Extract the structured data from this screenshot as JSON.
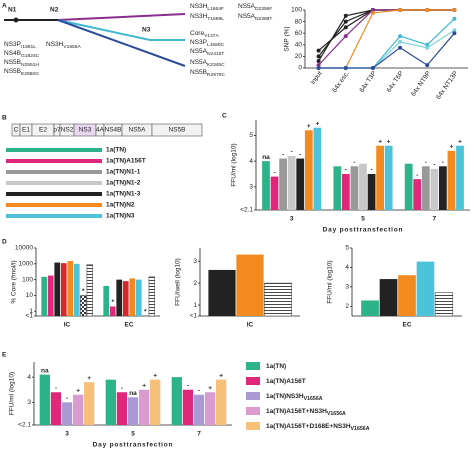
{
  "diagram": {
    "tree": {
      "panel": "A",
      "nodes": [
        "N1",
        "N2",
        "N3"
      ],
      "mutations": [
        {
          "gene": "NS3P",
          "pos": "I1581L",
          "color": "#8b2c8f"
        },
        {
          "gene": "NS3H",
          "pos": "V1656A",
          "color": "#f28a1e"
        },
        {
          "gene": "NS4B",
          "pos": "G1824C",
          "color": "#222222"
        },
        {
          "gene": "NS5B",
          "pos": "N2551H",
          "color": "#222222"
        },
        {
          "gene": "NS5B",
          "pos": "E2856G",
          "color": "#222222"
        },
        {
          "gene": "NS3H",
          "pos": "L1664F",
          "color": "#8b2c8f"
        },
        {
          "gene": "NS3H",
          "pos": "T1669L",
          "color": "#8b2c8f"
        },
        {
          "gene": "NS5A",
          "pos": "D2356F",
          "color": "#8b2c8f"
        },
        {
          "gene": "NS5A",
          "pos": "N2388T",
          "color": "#8b2c8f"
        },
        {
          "gene": "Core",
          "pos": "V137A",
          "color": "#3fb8d0"
        },
        {
          "gene": "NS3P",
          "pos": "L1580C",
          "color": "#3fb8d0"
        },
        {
          "gene": "NS5A",
          "pos": "N2415T",
          "color": "#3fb8d0"
        },
        {
          "gene": "NS5A",
          "pos": "K2345C",
          "color": "#2b4c9a"
        },
        {
          "gene": "NS5B",
          "pos": "R2970C",
          "color": "#2b4c9a"
        }
      ]
    },
    "genome": {
      "panel": "B",
      "segments": [
        "C",
        "E1",
        "E2",
        "p7",
        "NS2",
        "NS3",
        "4A",
        "NS4B",
        "NS5A",
        "NS5B"
      ],
      "rows": [
        {
          "name": "1a(TN)",
          "color": "#2db38a"
        },
        {
          "name": "1a(TN)A156T",
          "color": "#e0287a"
        },
        {
          "name": "1a(TN)N1-1",
          "color": "#999999"
        },
        {
          "name": "1a(TN)N1-2",
          "color": "#c8c8c8"
        },
        {
          "name": "1a(TN)N1-3",
          "color": "#222222"
        },
        {
          "name": "1a(TN)N2",
          "color": "#f28a1e"
        },
        {
          "name": "1a(TN)N3",
          "color": "#4cc3d9"
        }
      ]
    }
  },
  "chart_data": [
    {
      "type": "line",
      "ylabel": "SNP (%)",
      "categories": [
        "Input",
        "64x esc.",
        "64x T3P",
        "64x T6P",
        "64x NT9P",
        "64x NT13P"
      ],
      "ylim": [
        0,
        100
      ],
      "yticks": [
        0,
        20,
        40,
        60,
        80,
        100
      ],
      "series": [
        {
          "color": "#222222",
          "values": [
            30,
            70,
            100,
            100,
            100,
            100
          ]
        },
        {
          "color": "#222222",
          "values": [
            20,
            80,
            100,
            100,
            100,
            100
          ]
        },
        {
          "color": "#222222",
          "values": [
            12,
            90,
            100,
            100,
            100,
            100
          ]
        },
        {
          "color": "#8b2c8f",
          "values": [
            5,
            55,
            100,
            100,
            100,
            100
          ]
        },
        {
          "color": "#f28a1e",
          "values": [
            0,
            0,
            95,
            100,
            100,
            100
          ]
        },
        {
          "color": "#3fb8d0",
          "values": [
            0,
            0,
            0,
            55,
            40,
            85
          ]
        },
        {
          "color": "#7fd3e0",
          "values": [
            0,
            0,
            0,
            45,
            35,
            65
          ]
        },
        {
          "color": "#2b4c9a",
          "values": [
            0,
            0,
            0,
            35,
            5,
            60
          ]
        }
      ]
    },
    {
      "type": "bar",
      "panel": "C",
      "ylabel": "FFU/ml (log10)",
      "xlabel": "Day posttransfection",
      "categories": [
        "3",
        "5",
        "7"
      ],
      "ylim": [
        2.1,
        5.6
      ],
      "yticks": [
        {
          "value": 2.1,
          "label": "<2.1"
        },
        3,
        4,
        5
      ],
      "series": [
        {
          "color": "#2db38a",
          "values": [
            4.0,
            3.8,
            3.9
          ],
          "annotations": [
            "na",
            null,
            null
          ]
        },
        {
          "color": "#e0287a",
          "values": [
            3.4,
            3.5,
            3.3
          ],
          "annotations": [
            "-",
            "-",
            "-"
          ]
        },
        {
          "color": "#999999",
          "values": [
            4.1,
            3.8,
            3.8
          ],
          "annotations": [
            "-",
            "-",
            "-"
          ]
        },
        {
          "color": "#c8c8c8",
          "values": [
            4.2,
            3.9,
            3.7
          ],
          "annotations": [
            "-",
            null,
            "-"
          ]
        },
        {
          "color": "#222222",
          "values": [
            4.1,
            3.5,
            3.8
          ],
          "annotations": [
            "-",
            "-",
            "-"
          ]
        },
        {
          "color": "#f28a1e",
          "values": [
            5.2,
            4.6,
            4.4
          ],
          "annotations": [
            "+",
            "+",
            "+"
          ]
        },
        {
          "color": "#4cc3d9",
          "values": [
            5.3,
            4.6,
            4.6
          ],
          "annotations": [
            "+",
            "+",
            "+"
          ]
        }
      ]
    },
    {
      "type": "bar",
      "panel": "D",
      "log": true,
      "ylabel": "% Core (fmol/l)",
      "categories": [
        "IC",
        "EC"
      ],
      "ylim": [
        0.5,
        10000
      ],
      "yticks": [
        {
          "value": 0.5,
          "label": "<1"
        },
        1,
        10,
        100,
        1000,
        10000
      ],
      "series": [
        {
          "color": "#2db38a",
          "values": [
            150,
            40
          ],
          "annotations": [
            null,
            null
          ]
        },
        {
          "color": "#e0287a",
          "values": [
            180,
            2
          ],
          "annotations": [
            null,
            "*"
          ]
        },
        {
          "color": "#222222",
          "values": [
            1200,
            100
          ],
          "annotations": [
            null,
            null
          ]
        },
        {
          "color": "#d62728",
          "values": [
            1100,
            80
          ],
          "annotations": [
            null,
            null
          ]
        },
        {
          "color": "#f28a1e",
          "values": [
            1500,
            120
          ],
          "annotations": [
            null,
            null
          ]
        },
        {
          "color": "#4cc3d9",
          "values": [
            1000,
            100
          ],
          "annotations": [
            null,
            null
          ]
        },
        {
          "color": "#333333",
          "pattern": "checker",
          "values": [
            10,
            0.5
          ],
          "annotations": [
            "*",
            "*"
          ]
        },
        {
          "color": "#333333",
          "pattern": "hatch",
          "values": [
            900,
            150
          ],
          "annotations": [
            null,
            null
          ]
        }
      ]
    },
    {
      "type": "bar",
      "ylabel": "FFU/well (log10)",
      "categories": [
        "IC"
      ],
      "ylim": [
        0.5,
        3.6
      ],
      "yticks": [
        {
          "value": 0.5,
          "label": "<1"
        },
        1,
        2,
        3
      ],
      "series": [
        {
          "color": "#222222",
          "values": [
            2.6
          ]
        },
        {
          "color": "#f28a1e",
          "values": [
            3.3
          ]
        },
        {
          "color": "#333333",
          "pattern": "hatch",
          "values": [
            2.0
          ]
        }
      ]
    },
    {
      "type": "bar",
      "ylabel": "FFU/ml (log10)",
      "categories": [
        "EC"
      ],
      "ylim": [
        1.5,
        5
      ],
      "yticks": [
        2,
        3,
        4,
        5
      ],
      "series": [
        {
          "color": "#2db38a",
          "values": [
            2.3
          ]
        },
        {
          "color": "#222222",
          "values": [
            3.4
          ]
        },
        {
          "color": "#f28a1e",
          "values": [
            3.6
          ]
        },
        {
          "color": "#4cc3d9",
          "values": [
            4.3
          ]
        },
        {
          "color": "#333333",
          "pattern": "hatch",
          "values": [
            2.7
          ]
        }
      ]
    },
    {
      "type": "bar",
      "panel": "E",
      "ylabel": "FFU/ml (log10)",
      "xlabel": "Day posttransfection",
      "categories": [
        "3",
        "5",
        "7"
      ],
      "ylim": [
        2.1,
        4.6
      ],
      "yticks": [
        {
          "value": 2.1,
          "label": "<2.1"
        },
        3,
        4
      ],
      "legend": "right",
      "series": [
        {
          "name": "1a(TN)",
          "color": "#2db38a",
          "values": [
            4.1,
            3.9,
            4.0
          ],
          "annotations": [
            "na",
            null,
            null
          ]
        },
        {
          "name": "1a(TN)A156T",
          "color": "#e0287a",
          "values": [
            3.4,
            3.4,
            3.5
          ],
          "annotations": [
            "-",
            "-",
            "-"
          ]
        },
        {
          "name": "1a(TN)NS3H",
          "name_sub": "V1656A",
          "color": "#a99ad6",
          "values": [
            3.0,
            3.2,
            3.3
          ],
          "annotations": [
            "-",
            "na",
            "-"
          ]
        },
        {
          "name": "1a(TN)A156T+NS3H",
          "name_sub": "V1656A",
          "color": "#d99bd0",
          "values": [
            3.3,
            3.5,
            3.4
          ],
          "annotations": [
            "+",
            "+",
            "+"
          ]
        },
        {
          "name": "1a(TN)A156T+D168E+NS3H",
          "name_sub": "V1656A",
          "color": "#f7c07a",
          "values": [
            3.8,
            3.9,
            3.9
          ],
          "annotations": [
            "+",
            "+",
            "+"
          ]
        }
      ]
    }
  ]
}
